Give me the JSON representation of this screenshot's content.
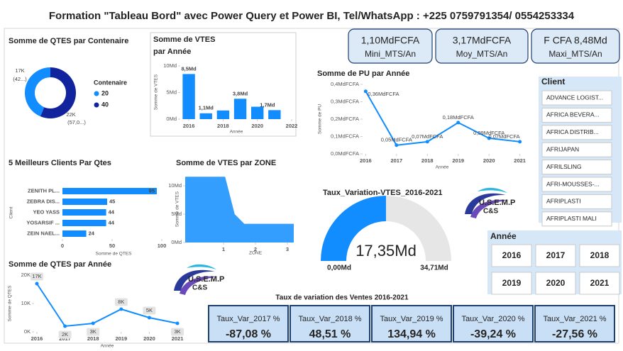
{
  "header": {
    "title": "Formation \"Tableau Bord\" avec Power Query et Power BI, Tel/WhatsApp : +225 0759791354/ 0554253334"
  },
  "kpis": [
    {
      "value": "1,10MdFCFA",
      "label": "Mini_MTS/An"
    },
    {
      "value": "3,17MdFCFA",
      "label": "Moy_MTS/An"
    },
    {
      "value": "F CFA 8,48Md",
      "label": "Maxi_MTS/An"
    }
  ],
  "chart_data": [
    {
      "type": "donut",
      "title": "Somme de QTES par Contenaire",
      "legend_title": "Contenaire",
      "categories": [
        "20",
        "40"
      ],
      "values": [
        17000,
        22000
      ],
      "value_labels": [
        "17K",
        "22K"
      ],
      "percent_labels": [
        "(42...)",
        "(57,0...)"
      ],
      "colors": [
        "#118DFF",
        "#12239E"
      ]
    },
    {
      "type": "bar",
      "title": "Somme de VTES par Année",
      "xlabel": "Année",
      "ylabel": "Somme de VTES",
      "x": [
        2016,
        2017,
        2018,
        2019,
        2020,
        2021
      ],
      "values": [
        8.48,
        1.1,
        1.63,
        3.83,
        2.33,
        1.69
      ],
      "value_labels": [
        "8,5Md",
        "1,1Md",
        null,
        "3,8Md",
        null,
        "1,7Md"
      ],
      "xlim": [
        2015.5,
        2022
      ],
      "xticks": [
        2016,
        2018,
        2020,
        2022
      ],
      "ylim": [
        0,
        10
      ],
      "yticks": [
        {
          "value": 0,
          "label": "0Md"
        },
        {
          "value": 5,
          "label": "5Md"
        },
        {
          "value": 10,
          "label": "10Md"
        }
      ],
      "color": "#118DFF"
    },
    {
      "type": "line",
      "title": "Somme de PU par Année",
      "xlabel": "Année",
      "ylabel": "Somme de PU",
      "x": [
        2016,
        2017,
        2018,
        2019,
        2020,
        2021
      ],
      "values": [
        0.36,
        0.05,
        0.07,
        0.18,
        0.09,
        0.07
      ],
      "value_labels": [
        "0,36MdFCFA",
        "0,05MdFCFA",
        "0,07MdFCFA",
        "0,18MdFCFA",
        "0,09MdFCFA",
        "0,07MdFCFA"
      ],
      "xlim": [
        2015.9,
        2021.1
      ],
      "xticks": [
        2016,
        2017,
        2018,
        2019,
        2020,
        2021
      ],
      "ylim": [
        0,
        0.4
      ],
      "yticks": [
        {
          "value": 0,
          "label": "0,0MdFCFA"
        },
        {
          "value": 0.1,
          "label": "0,1MdFCFA"
        },
        {
          "value": 0.2,
          "label": "0,2MdFCFA"
        },
        {
          "value": 0.3,
          "label": "0,3MdFCFA"
        },
        {
          "value": 0.4,
          "label": "0,4MdFCFA"
        }
      ],
      "color": "#118DFF"
    },
    {
      "type": "hbar",
      "title": "5 Meilleurs Clients Par Qtes",
      "xlabel": "Somme de QTES",
      "ylabel": "Client",
      "categories": [
        "ZENITH PL...",
        "ZEBRA DIS...",
        "YEO YASS",
        "YOSARSIF ...",
        "ZEIN NAEL..."
      ],
      "values": [
        95,
        45,
        44,
        44,
        24
      ],
      "xlim": [
        0,
        100
      ],
      "xticks": [
        0,
        50,
        100
      ],
      "color": "#118DFF"
    },
    {
      "type": "area",
      "title": "Somme de VTES par ZONE",
      "xlabel": "ZONE",
      "ylabel": "Somme de VTES",
      "x": [
        -0.2,
        1.05,
        1.35,
        1.65,
        3.2
      ],
      "values": [
        11.6,
        11.6,
        5,
        3.3,
        3.3
      ],
      "xlim": [
        -0.2,
        3.2
      ],
      "xticks": [
        1,
        2,
        3
      ],
      "ylim": [
        0,
        12
      ],
      "yticks": [
        {
          "value": 0,
          "label": "0Md"
        },
        {
          "value": 5,
          "label": "5Md"
        },
        {
          "value": 10,
          "label": "10Md"
        }
      ],
      "color": "#118DFF"
    },
    {
      "type": "gauge",
      "title": "Taux_Variation-VTES_2016-2021",
      "value": 17.35,
      "value_label": "17,35Md",
      "min": 0,
      "min_label": "0,00Md",
      "max": 34.71,
      "max_label": "34,71Md",
      "color": "#118DFF",
      "track_color": "#E6E6E6"
    },
    {
      "type": "line",
      "title": "Somme de QTES par Année",
      "xlabel": "Année",
      "ylabel": "Somme de QTES",
      "x": [
        2016,
        2017,
        2018,
        2019,
        2020,
        2021
      ],
      "values": [
        17000,
        2000,
        3000,
        8000,
        5000,
        3000
      ],
      "value_labels": [
        "17K",
        "2K",
        "3K",
        "8K",
        "5K",
        "3K"
      ],
      "xlim": [
        2015.9,
        2021.1
      ],
      "xticks": [
        2016,
        2017,
        2018,
        2019,
        2020,
        2021
      ],
      "ylim": [
        0,
        20000
      ],
      "yticks": [
        {
          "value": 0,
          "label": "0K"
        },
        {
          "value": 10000,
          "label": "10K"
        },
        {
          "value": 20000,
          "label": "20K"
        }
      ],
      "color": "#118DFF"
    }
  ],
  "client_slicer": {
    "title": "Client",
    "items": [
      "ADVANCE LOGIST...",
      "AFRICA BEVERA...",
      "AFRICA DISTRIB...",
      "AFRIJAPAN",
      "AFRILSLING",
      "AFRI-MOUSSES-...",
      "AFRIPLASTI",
      "AFRIPLASTI MALI"
    ]
  },
  "year_slicer": {
    "title": "Année",
    "items": [
      2016,
      2017,
      2018,
      2019,
      2020,
      2021
    ]
  },
  "variation_table": {
    "title": "Taux de variation des Ventes 2016-2021",
    "headers": [
      "Taux_Var_2017 %",
      "Taux_Var_2018 %",
      "Taux_Var_2019 %",
      "Taux_Var_2020 %",
      "Taux_Var_2021 %"
    ],
    "rows": [
      [
        "-87,08 %",
        "48,51 %",
        "134,94 %",
        "-39,24 %",
        "-27,56 %"
      ]
    ]
  },
  "logos": [
    {
      "line1": "U.S.E.M.P",
      "line2": "C&S"
    },
    {
      "line1": "U.S.E.M.P",
      "line2": "C&S"
    }
  ]
}
